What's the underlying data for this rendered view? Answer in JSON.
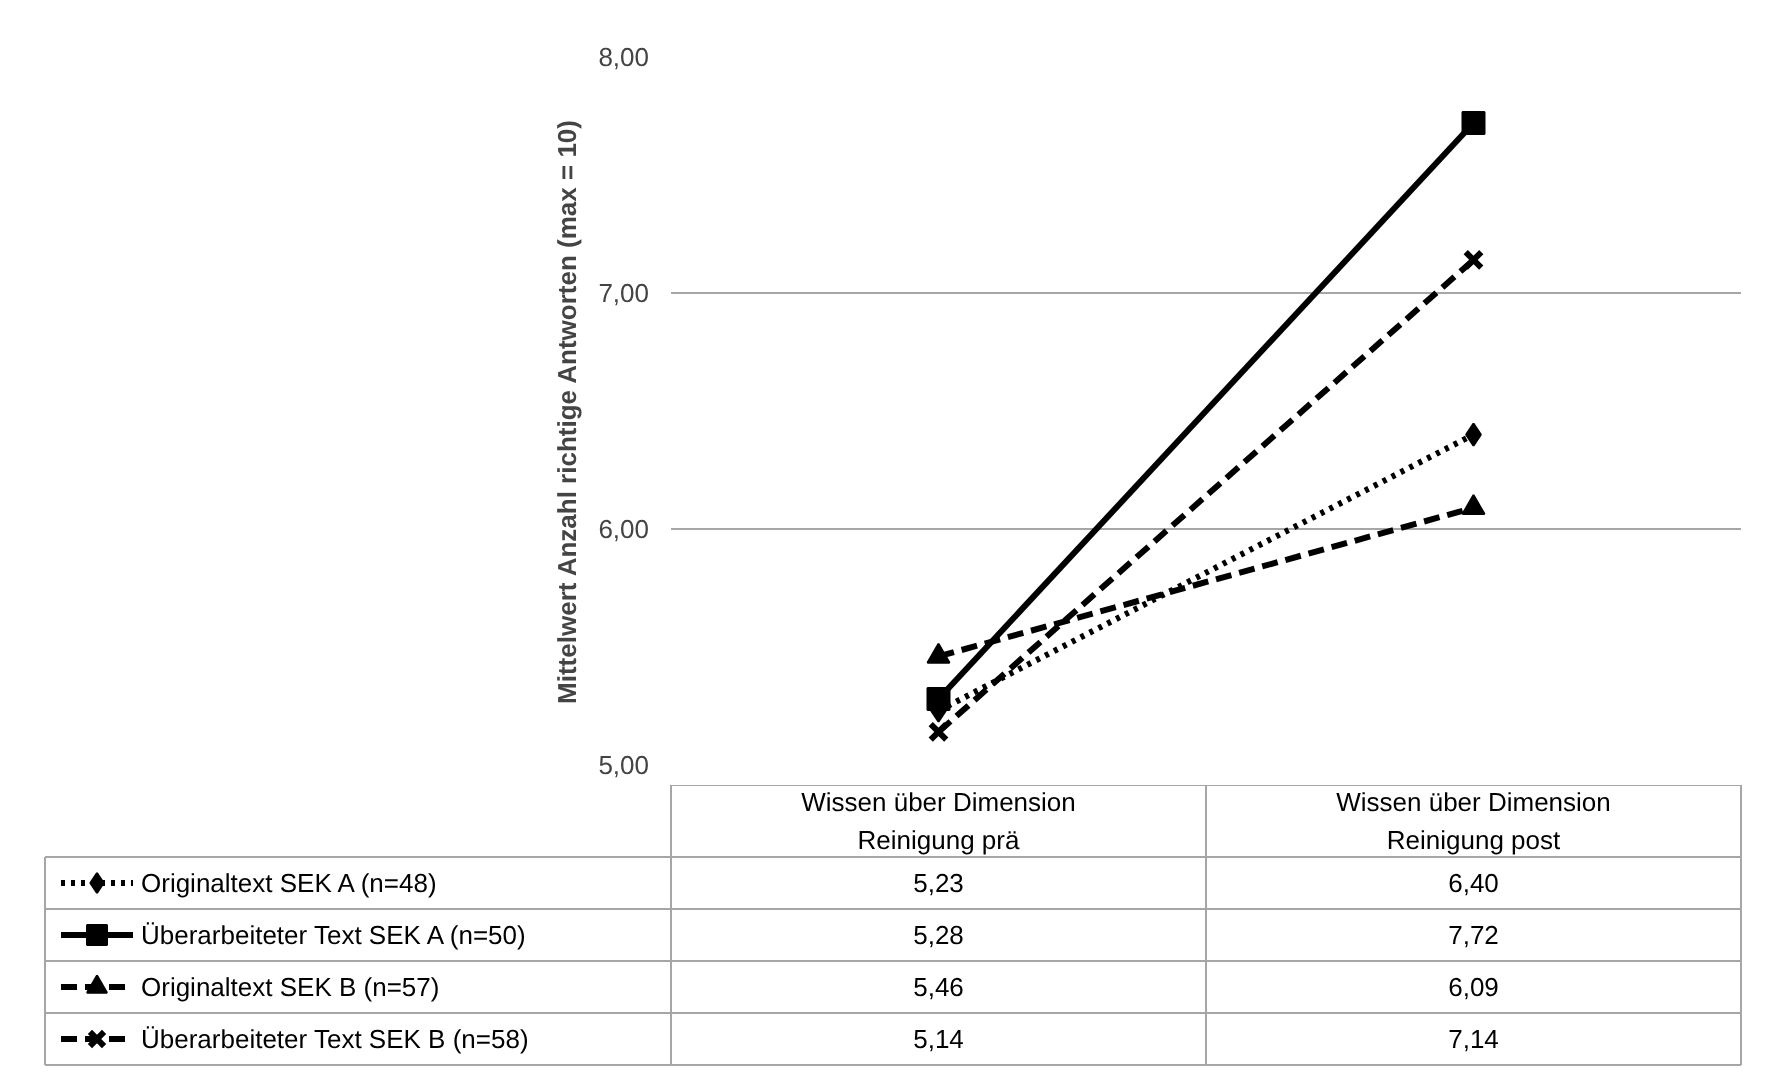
{
  "chart_data": {
    "type": "line",
    "ylabel": "Mittelwert Anzahl richtige Antworten (max = 10)",
    "categories": [
      "Wissen über Dimension Reinigung prä",
      "Wissen über Dimension Reinigung post"
    ],
    "ylim": [
      5,
      8
    ],
    "yticks": [
      {
        "value": 5,
        "label": "5,00"
      },
      {
        "value": 6,
        "label": "6,00"
      },
      {
        "value": 7,
        "label": "7,00"
      },
      {
        "value": 8,
        "label": "8,00"
      }
    ],
    "grid": "y",
    "legend": "bottom",
    "data_labels": true,
    "series": [
      {
        "name": "Originaltext SEK A (n=48)",
        "color": "#000000",
        "marker": "diamond",
        "line_style": "dotted",
        "values": [
          5.23,
          6.4
        ],
        "value_labels": [
          "5,23",
          "6,40"
        ]
      },
      {
        "name": "Überarbeiteter Text SEK A (n=50)",
        "color": "#000000",
        "marker": "square",
        "line_style": "solid",
        "values": [
          5.28,
          7.72
        ],
        "value_labels": [
          "5,28",
          "7,72"
        ]
      },
      {
        "name": "Originaltext SEK B (n=57)",
        "color": "#000000",
        "marker": "triangle",
        "line_style": "dashed",
        "values": [
          5.46,
          6.09
        ],
        "value_labels": [
          "5,46",
          "6,09"
        ]
      },
      {
        "name": "Überarbeiteter Text SEK B (n=58)",
        "color": "#000000",
        "marker": "cross",
        "line_style": "dashed",
        "values": [
          5.14,
          7.14
        ],
        "value_labels": [
          "5,14",
          "7,14"
        ]
      }
    ]
  }
}
